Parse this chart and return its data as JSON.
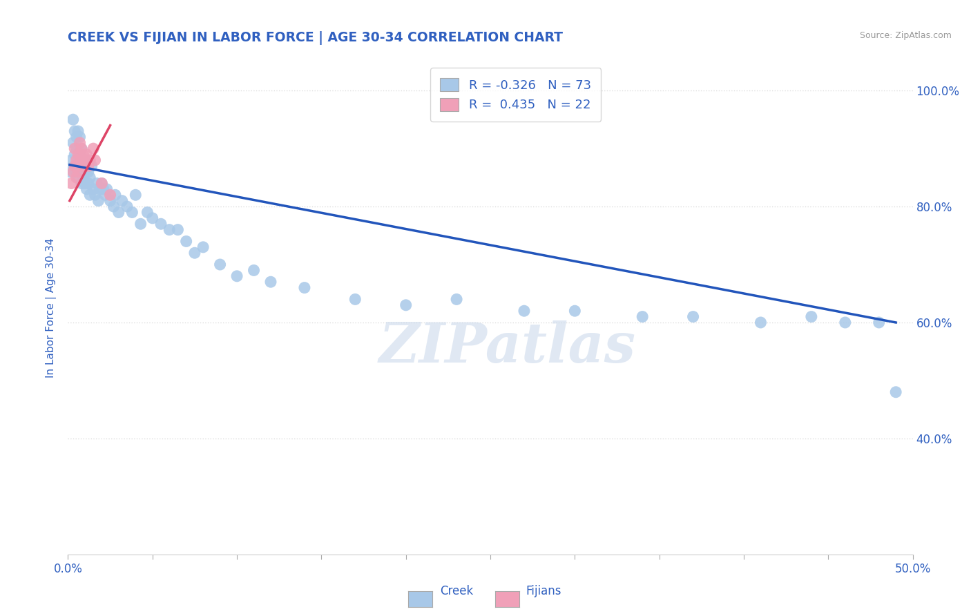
{
  "title": "CREEK VS FIJIAN IN LABOR FORCE | AGE 30-34 CORRELATION CHART",
  "source": "Source: ZipAtlas.com",
  "ylabel": "In Labor Force | Age 30-34",
  "xlim": [
    0.0,
    0.5
  ],
  "ylim": [
    0.2,
    1.05
  ],
  "ytick_positions": [
    0.4,
    0.6,
    0.8,
    1.0
  ],
  "yticklabels": [
    "40.0%",
    "60.0%",
    "80.0%",
    "100.0%"
  ],
  "creek_R": -0.326,
  "creek_N": 73,
  "fijian_R": 0.435,
  "fijian_N": 22,
  "creek_color": "#a8c8e8",
  "fijian_color": "#f0a0b8",
  "creek_line_color": "#2255bb",
  "fijian_line_color": "#dd4466",
  "creek_x": [
    0.001,
    0.002,
    0.003,
    0.003,
    0.004,
    0.004,
    0.004,
    0.005,
    0.005,
    0.005,
    0.006,
    0.006,
    0.006,
    0.007,
    0.007,
    0.007,
    0.008,
    0.008,
    0.008,
    0.009,
    0.009,
    0.01,
    0.01,
    0.011,
    0.011,
    0.012,
    0.012,
    0.013,
    0.013,
    0.014,
    0.015,
    0.016,
    0.017,
    0.018,
    0.019,
    0.02,
    0.021,
    0.022,
    0.023,
    0.025,
    0.027,
    0.028,
    0.03,
    0.032,
    0.035,
    0.038,
    0.04,
    0.043,
    0.047,
    0.05,
    0.055,
    0.06,
    0.065,
    0.07,
    0.075,
    0.08,
    0.09,
    0.1,
    0.11,
    0.12,
    0.14,
    0.17,
    0.2,
    0.23,
    0.27,
    0.3,
    0.34,
    0.37,
    0.41,
    0.44,
    0.46,
    0.48,
    0.49
  ],
  "creek_y": [
    0.86,
    0.88,
    0.91,
    0.95,
    0.89,
    0.93,
    0.87,
    0.92,
    0.86,
    0.9,
    0.88,
    0.93,
    0.85,
    0.89,
    0.87,
    0.92,
    0.86,
    0.9,
    0.84,
    0.88,
    0.85,
    0.86,
    0.84,
    0.88,
    0.83,
    0.86,
    0.84,
    0.85,
    0.82,
    0.87,
    0.83,
    0.82,
    0.84,
    0.81,
    0.83,
    0.84,
    0.83,
    0.82,
    0.83,
    0.81,
    0.8,
    0.82,
    0.79,
    0.81,
    0.8,
    0.79,
    0.82,
    0.77,
    0.79,
    0.78,
    0.77,
    0.76,
    0.76,
    0.74,
    0.72,
    0.73,
    0.7,
    0.68,
    0.69,
    0.67,
    0.66,
    0.64,
    0.63,
    0.64,
    0.62,
    0.62,
    0.61,
    0.61,
    0.6,
    0.61,
    0.6,
    0.6,
    0.48
  ],
  "fijian_x": [
    0.002,
    0.003,
    0.004,
    0.004,
    0.005,
    0.005,
    0.006,
    0.006,
    0.007,
    0.007,
    0.008,
    0.008,
    0.009,
    0.009,
    0.01,
    0.011,
    0.012,
    0.013,
    0.015,
    0.016,
    0.02,
    0.025
  ],
  "fijian_y": [
    0.84,
    0.86,
    0.87,
    0.9,
    0.85,
    0.88,
    0.86,
    0.89,
    0.87,
    0.91,
    0.88,
    0.9,
    0.87,
    0.89,
    0.88,
    0.89,
    0.87,
    0.88,
    0.9,
    0.88,
    0.84,
    0.82
  ],
  "creek_trend_x": [
    0.001,
    0.49
  ],
  "creek_trend_y": [
    0.872,
    0.6
  ],
  "fijian_trend_x": [
    0.001,
    0.025
  ],
  "fijian_trend_y": [
    0.81,
    0.94
  ],
  "watermark_text": "ZIPatlas",
  "background_color": "#ffffff",
  "grid_color": "#dddddd",
  "title_color": "#3060c0",
  "axis_color": "#3060c0",
  "legend_label_creek": "R = -0.326   N = 73",
  "legend_label_fijian": "R =  0.435   N = 22"
}
